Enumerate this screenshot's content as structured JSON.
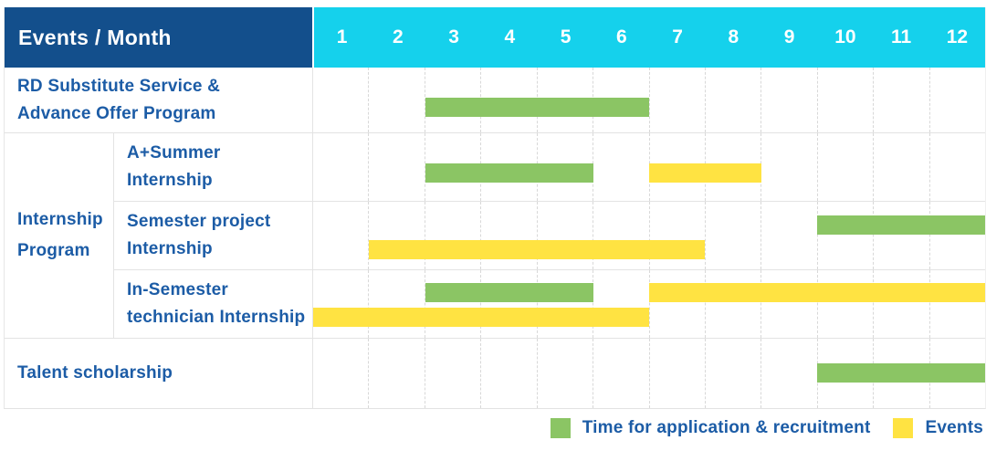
{
  "title_header": {
    "label": "Events / Month",
    "months": [
      "1",
      "2",
      "3",
      "4",
      "5",
      "6",
      "7",
      "8",
      "9",
      "10",
      "11",
      "12"
    ]
  },
  "colors": {
    "navy": "#134f8c",
    "cyan": "#15d1ec",
    "application": "#8bc564",
    "events": "#ffe342",
    "label_text": "#1c5ca6"
  },
  "legend": {
    "items": [
      {
        "series": "application",
        "label": "Time for application & recruitment"
      },
      {
        "series": "events",
        "label": "Events"
      }
    ]
  },
  "chart_data": {
    "type": "table",
    "subtype": "gantt-schedule",
    "title": "Events / Month",
    "x_axis": {
      "unit": "month",
      "ticks": [
        "1",
        "2",
        "3",
        "4",
        "5",
        "6",
        "7",
        "8",
        "9",
        "10",
        "11",
        "12"
      ],
      "range": [
        1,
        12
      ]
    },
    "series_legend": [
      {
        "name": "Time for application & recruitment",
        "color": "#8bc564"
      },
      {
        "name": "Events",
        "color": "#ffe342"
      }
    ],
    "group_label": {
      "label": "Internship Program",
      "label_lines": [
        "Internship",
        "Program"
      ]
    },
    "rows": [
      {
        "label": "RD Substitute Service & Advance Offer Program",
        "label_lines": [
          "RD Substitute Service &",
          "Advance Offer Program"
        ],
        "group": null,
        "bars": [
          {
            "series": "application",
            "start_month": 3,
            "end_month": 6,
            "track": "mid"
          }
        ]
      },
      {
        "label": "A+Summer Internship",
        "label_lines": [
          "A+Summer",
          "Internship"
        ],
        "group": "Internship Program",
        "bars": [
          {
            "series": "application",
            "start_month": 3,
            "end_month": 5,
            "track": "mid"
          },
          {
            "series": "events",
            "start_month": 7,
            "end_month": 8,
            "track": "mid"
          }
        ]
      },
      {
        "label": "Semester project Internship",
        "label_lines": [
          "Semester project",
          "Internship"
        ],
        "group": "Internship Program",
        "bars": [
          {
            "series": "application",
            "start_month": 10,
            "end_month": 12,
            "track": "upper"
          },
          {
            "series": "events",
            "start_month": 2,
            "end_month": 7,
            "track": "lower"
          }
        ]
      },
      {
        "label": "In-Semester technician Internship",
        "label_lines": [
          "In-Semester",
          "technician Internship"
        ],
        "group": "Internship Program",
        "bars": [
          {
            "series": "application",
            "start_month": 3,
            "end_month": 5,
            "track": "upper"
          },
          {
            "series": "events",
            "start_month": 7,
            "end_month": 12,
            "track": "upper"
          },
          {
            "series": "events",
            "start_month": 1,
            "end_month": 6,
            "track": "lower"
          }
        ]
      },
      {
        "label": "Talent scholarship",
        "label_lines": [
          "Talent scholarship"
        ],
        "group": null,
        "bars": [
          {
            "series": "application",
            "start_month": 10,
            "end_month": 12,
            "track": "mid"
          }
        ]
      }
    ]
  }
}
